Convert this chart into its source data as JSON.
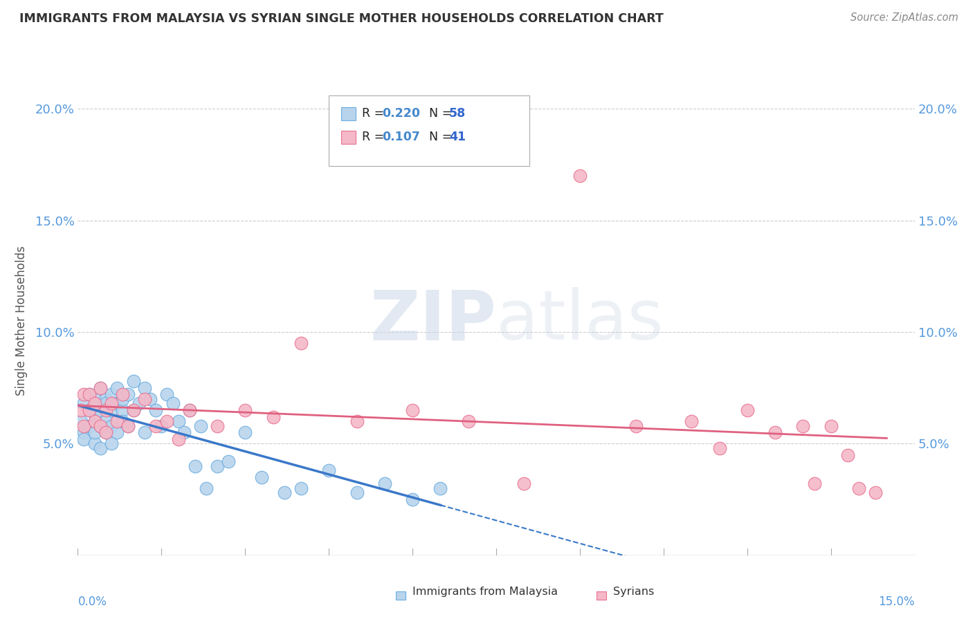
{
  "title": "IMMIGRANTS FROM MALAYSIA VS SYRIAN SINGLE MOTHER HOUSEHOLDS CORRELATION CHART",
  "source": "Source: ZipAtlas.com",
  "ylabel": "Single Mother Households",
  "watermark": "ZIPatlas",
  "xmin": 0.0,
  "xmax": 0.15,
  "ymin": 0.0,
  "ymax": 0.21,
  "yticks": [
    0.05,
    0.1,
    0.15,
    0.2
  ],
  "ytick_labels": [
    "5.0%",
    "10.0%",
    "15.0%",
    "20.0%"
  ],
  "color_malaysia": "#b8d4ed",
  "color_malaysia_edge": "#6aace0",
  "color_syria": "#f4b8c8",
  "color_syria_edge": "#e87090",
  "color_line_malaysia": "#3a78c9",
  "color_line_syria": "#e06080",
  "color_title": "#333333",
  "color_source": "#888888",
  "color_tick_label": "#5599dd",
  "color_legend_r": "#4488cc",
  "color_legend_n": "#3366cc",
  "background_color": "#ffffff",
  "grid_color": "#cccccc",
  "malaysia_x": [
    0.0005,
    0.001,
    0.001,
    0.001,
    0.002,
    0.002,
    0.002,
    0.003,
    0.003,
    0.003,
    0.003,
    0.004,
    0.004,
    0.004,
    0.004,
    0.005,
    0.005,
    0.005,
    0.005,
    0.006,
    0.006,
    0.006,
    0.006,
    0.007,
    0.007,
    0.007,
    0.008,
    0.008,
    0.008,
    0.009,
    0.009,
    0.01,
    0.01,
    0.011,
    0.012,
    0.012,
    0.013,
    0.014,
    0.015,
    0.016,
    0.017,
    0.018,
    0.019,
    0.02,
    0.021,
    0.022,
    0.023,
    0.025,
    0.027,
    0.03,
    0.033,
    0.037,
    0.04,
    0.045,
    0.05,
    0.055,
    0.06,
    0.065
  ],
  "malaysia_y": [
    0.06,
    0.055,
    0.068,
    0.052,
    0.065,
    0.058,
    0.072,
    0.05,
    0.063,
    0.07,
    0.055,
    0.058,
    0.065,
    0.075,
    0.048,
    0.06,
    0.07,
    0.055,
    0.068,
    0.058,
    0.065,
    0.072,
    0.05,
    0.068,
    0.075,
    0.055,
    0.065,
    0.07,
    0.06,
    0.072,
    0.058,
    0.065,
    0.078,
    0.068,
    0.055,
    0.075,
    0.07,
    0.065,
    0.058,
    0.072,
    0.068,
    0.06,
    0.055,
    0.065,
    0.04,
    0.058,
    0.03,
    0.04,
    0.042,
    0.055,
    0.035,
    0.028,
    0.03,
    0.038,
    0.028,
    0.032,
    0.025,
    0.03
  ],
  "syria_x": [
    0.0005,
    0.001,
    0.001,
    0.002,
    0.002,
    0.003,
    0.003,
    0.004,
    0.004,
    0.005,
    0.005,
    0.006,
    0.007,
    0.008,
    0.009,
    0.01,
    0.012,
    0.014,
    0.016,
    0.018,
    0.02,
    0.025,
    0.03,
    0.035,
    0.04,
    0.05,
    0.06,
    0.07,
    0.08,
    0.09,
    0.1,
    0.11,
    0.115,
    0.12,
    0.125,
    0.13,
    0.132,
    0.135,
    0.138,
    0.14,
    0.143
  ],
  "syria_y": [
    0.065,
    0.072,
    0.058,
    0.065,
    0.072,
    0.06,
    0.068,
    0.058,
    0.075,
    0.055,
    0.065,
    0.068,
    0.06,
    0.072,
    0.058,
    0.065,
    0.07,
    0.058,
    0.06,
    0.052,
    0.065,
    0.058,
    0.065,
    0.062,
    0.095,
    0.06,
    0.065,
    0.06,
    0.032,
    0.17,
    0.058,
    0.06,
    0.048,
    0.065,
    0.055,
    0.058,
    0.032,
    0.058,
    0.045,
    0.03,
    0.028
  ]
}
